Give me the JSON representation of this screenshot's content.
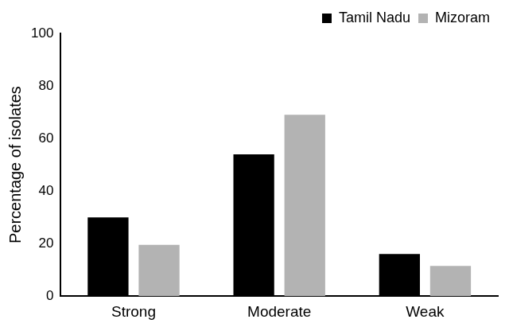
{
  "chart_data": {
    "type": "bar",
    "categories": [
      "Strong",
      "Moderate",
      "Weak"
    ],
    "series": [
      {
        "name": "Tamil Nadu",
        "color": "#000000",
        "values": [
          30,
          54,
          16
        ]
      },
      {
        "name": "Mizoram",
        "color": "#b3b3b3",
        "values": [
          19.5,
          69,
          11.5
        ]
      }
    ],
    "y_label": "Percentage of isolates",
    "ylim": [
      0,
      100
    ],
    "yticks": [
      0,
      20,
      40,
      60,
      80,
      100
    ],
    "grid": false,
    "legend": "top-right"
  }
}
